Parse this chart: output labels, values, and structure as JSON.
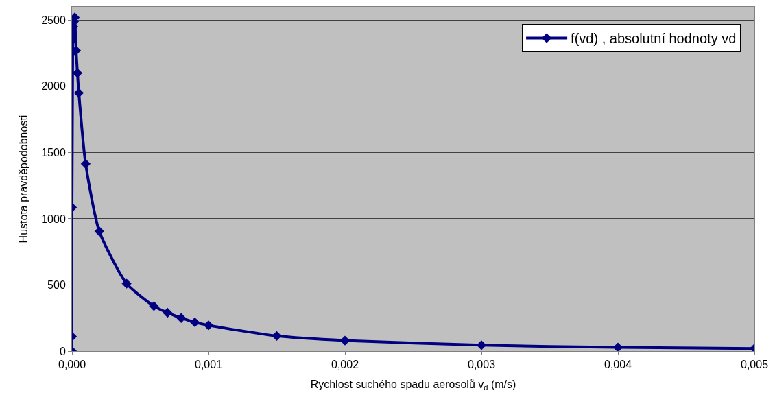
{
  "chart_data": {
    "type": "line",
    "xlabel": "Rychlost suchého spadu aerosolů v$_{d}$ (m/s)",
    "ylabel": "Hustota pravděpodobnosti",
    "x": [
      0,
      0,
      0,
      5e-06,
      5e-06,
      1e-05,
      1.5e-05,
      2e-05,
      3e-05,
      4e-05,
      5e-05,
      0.0001,
      0.0002,
      0.0004,
      0.0006,
      0.0007,
      0.0008,
      0.0009,
      0.001,
      0.0015,
      0.002,
      0.003,
      0.004,
      0.005
    ],
    "series": [
      {
        "name": "f(vd) , absolutní hodnoty vd",
        "color": "#000080",
        "values": [
          0,
          110,
          1085,
          2260,
          2350,
          2450,
          2490,
          2520,
          2270,
          2100,
          1950,
          1415,
          905,
          510,
          340,
          290,
          250,
          218,
          195,
          115,
          80,
          45,
          28,
          20
        ]
      }
    ],
    "xlim": [
      0,
      0.005
    ],
    "ylim": [
      0,
      2600
    ],
    "xticks": [
      {
        "value": 0,
        "label": "0,000"
      },
      {
        "value": 0.001,
        "label": "0,001"
      },
      {
        "value": 0.002,
        "label": "0,002"
      },
      {
        "value": 0.003,
        "label": "0,003"
      },
      {
        "value": 0.004,
        "label": "0,004"
      },
      {
        "value": 0.005,
        "label": "0,005"
      }
    ],
    "yticks": [
      0,
      500,
      1000,
      1500,
      2000,
      2500
    ],
    "grid": "y",
    "legend": "top right",
    "marker": "diamond",
    "line_style": "solid"
  }
}
